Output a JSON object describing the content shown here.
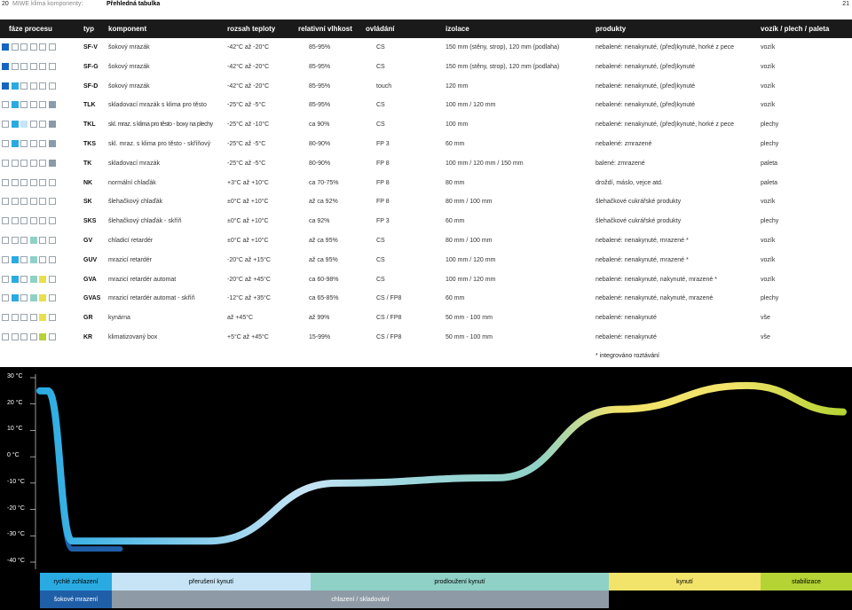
{
  "header": {
    "page_left": "20",
    "section": "MIWE klima komponenty:",
    "title": "Přehledná tabulka",
    "page_right": "21"
  },
  "table": {
    "columns": [
      "fáze procesu",
      "typ",
      "komponent",
      "rozsah teploty",
      "relativní vlhkost",
      "ovládání",
      "izolace",
      "produkty",
      "vozík / plech / paleta"
    ],
    "rows": [
      {
        "phase": [
          "blue",
          "w",
          "w",
          "w",
          "w",
          "w"
        ],
        "type": "SF-V",
        "component": "šokový mrazák",
        "temp": "-42°C až -20°C",
        "humidity": "85-95%",
        "control": "CS",
        "insulation": "150 mm (stěny, strop), 120 mm (podlaha)",
        "products": "nebalené: nenakynuté, (před)kynuté, horké z pece",
        "carrier": "vozík"
      },
      {
        "phase": [
          "blue",
          "w",
          "w",
          "w",
          "w",
          "w"
        ],
        "type": "SF-G",
        "component": "šokový mrazák",
        "temp": "-42°C až -20°C",
        "humidity": "85-95%",
        "control": "CS",
        "insulation": "150 mm (stěny, strop), 120 mm (podlaha)",
        "products": "nebalené: nenakynuté, (před)kynuté",
        "carrier": "vozík"
      },
      {
        "phase": [
          "blue",
          "sky",
          "w",
          "w",
          "w",
          "w"
        ],
        "type": "SF-D",
        "component": "šokový mrazák",
        "temp": "-42°C až -20°C",
        "humidity": "85-95%",
        "control": "touch",
        "insulation": "120 mm",
        "products": "nebalené: nenakynuté, (před)kynuté",
        "carrier": "vozík"
      },
      {
        "phase": [
          "w",
          "sky",
          "w",
          "w",
          "w",
          "grey"
        ],
        "type": "TLK",
        "component": "skladovací mrazák s klima pro těsto",
        "temp": "-25°C až -5°C",
        "humidity": "85-95%",
        "control": "CS",
        "insulation": "100 mm / 120 mm",
        "products": "nebalené: nenakynuté, (před)kynuté",
        "carrier": "vozík"
      },
      {
        "phase": [
          "w",
          "sky",
          "lblue",
          "w",
          "w",
          "grey"
        ],
        "type": "TKL",
        "component": "skl. mraz. s klima pro těsto - boxy na plechy",
        "temp": "-25°C až -10°C",
        "humidity": "ca 90%",
        "control": "CS",
        "insulation": "100 mm",
        "products": "nebalené: nenakynuté, (před)kynuté, horké z pece",
        "carrier": "plechy"
      },
      {
        "phase": [
          "w",
          "sky",
          "w",
          "w",
          "w",
          "grey"
        ],
        "type": "TKS",
        "component": "skl. mraz. s klima pro těsto - skříňový",
        "temp": "-25°C až -5°C",
        "humidity": "80-90%",
        "control": "FP 3",
        "insulation": "60 mm",
        "products": "nebalené: zmrazené",
        "carrier": "plechy"
      },
      {
        "phase": [
          "w",
          "w",
          "w",
          "w",
          "w",
          "grey"
        ],
        "type": "TK",
        "component": "skladovací mrazák",
        "temp": "-25°C až -5°C",
        "humidity": "80-90%",
        "control": "FP 8",
        "insulation": "100 mm / 120 mm / 150 mm",
        "products": "balené: zmrazené",
        "carrier": "paleta"
      },
      {
        "phase": [
          "w",
          "w",
          "w",
          "w",
          "w",
          "w"
        ],
        "type": "NK",
        "component": "normální chlaďák",
        "temp": "+3°C až +10°C",
        "humidity": "ca 70-75%",
        "control": "FP 8",
        "insulation": "80 mm",
        "products": "droždí, máslo, vejce atd.",
        "carrier": "paleta"
      },
      {
        "phase": [
          "w",
          "w",
          "w",
          "w",
          "w",
          "w"
        ],
        "type": "SK",
        "component": "šlehačkový chlaďák",
        "temp": "±0°C až +10°C",
        "humidity": "až ca 92%",
        "control": "FP 8",
        "insulation": "80 mm / 100 mm",
        "products": "šlehačkové cukrářské produkty",
        "carrier": "vozík"
      },
      {
        "phase": [
          "w",
          "w",
          "w",
          "w",
          "w",
          "w"
        ],
        "type": "SKS",
        "component": "šlehačkový chlaďák - skříň",
        "temp": "±0°C až +10°C",
        "humidity": "ca 92%",
        "control": "FP 3",
        "insulation": "60 mm",
        "products": "šlehačkové cukrářské produkty",
        "carrier": "plechy"
      },
      {
        "phase": [
          "w",
          "w",
          "w",
          "teal",
          "w",
          "w"
        ],
        "type": "GV",
        "component": "chladicí retardér",
        "temp": "±0°C až +10°C",
        "humidity": "až ca 95%",
        "control": "CS",
        "insulation": "80 mm / 100 mm",
        "products": "nebalené: nenakynuté, mrazené *",
        "carrier": "vozík"
      },
      {
        "phase": [
          "w",
          "sky",
          "w",
          "teal",
          "w",
          "w"
        ],
        "type": "GUV",
        "component": "mrazicí retardér",
        "temp": "-20°C až +15°C",
        "humidity": "až ca 95%",
        "control": "CS",
        "insulation": "100 mm / 120 mm",
        "products": "nebalené: nenakynuté, mrazené *",
        "carrier": "vozík"
      },
      {
        "phase": [
          "w",
          "sky",
          "w",
          "teal",
          "yel",
          "w"
        ],
        "type": "GVA",
        "component": "mrazicí retardér automat",
        "temp": "-20°C až +45°C",
        "humidity": "ca 60-98%",
        "control": "CS",
        "insulation": "100 mm / 120 mm",
        "products": "nebalené: nenakynuté, nakynuté, mrazené *",
        "carrier": "vozík"
      },
      {
        "phase": [
          "w",
          "sky",
          "w",
          "teal",
          "yel",
          "w"
        ],
        "type": "GVAS",
        "component": "mrazicí retardér automat - skříň",
        "temp": "-12°C až +35°C",
        "humidity": "ca 65-85%",
        "control": "CS / FP8",
        "insulation": "60 mm",
        "products": "nebalené: nenakynuté, nakynuté, mrazené",
        "carrier": "plechy"
      },
      {
        "phase": [
          "w",
          "w",
          "w",
          "w",
          "yel",
          "w"
        ],
        "type": "GR",
        "component": "kynárna",
        "temp": "až +45°C",
        "humidity": "až 99%",
        "control": "CS / FP8",
        "insulation": "50 mm - 100 mm",
        "products": "nebalené: nenakynuté",
        "carrier": "vše"
      },
      {
        "phase": [
          "w",
          "w",
          "w",
          "w",
          "lime",
          "w"
        ],
        "type": "KR",
        "component": "klimatizovaný box",
        "temp": "+5°C až +45°C",
        "humidity": "15-99%",
        "control": "CS / FP8",
        "insulation": "50 mm - 100 mm",
        "products": "nebalené: nenakynuté",
        "carrier": "vše"
      }
    ],
    "footnote": "* integrováno roztávání"
  },
  "chart_data": {
    "type": "line",
    "y_axis": {
      "ticks": [
        "30 °C",
        "20 °C",
        "10 °C",
        "0 °C",
        "-10 °C",
        "-20 °C",
        "-30 °C",
        "-40 °C"
      ],
      "range": [
        -40,
        30
      ]
    },
    "series": [
      {
        "points": [
          [
            0,
            25
          ],
          [
            1,
            25
          ],
          [
            4,
            -35
          ],
          [
            10,
            -35
          ]
        ],
        "color": "#1f5fa8"
      },
      {
        "points": [
          [
            0,
            25
          ],
          [
            1,
            25
          ],
          [
            4,
            -32
          ],
          [
            21,
            -32
          ],
          [
            37,
            -10
          ],
          [
            57,
            -8
          ],
          [
            72,
            18
          ],
          [
            88,
            27
          ],
          [
            100,
            17
          ]
        ],
        "color": "#29abe2"
      }
    ],
    "colors": {
      "shock": "#1f5fa8",
      "fast": "#29abe2",
      "interrupt": "#c6e4f5",
      "extended": "#8fd1c6",
      "proof": "#f2e36a",
      "stabilize": "#b5d334",
      "cool": "#8e9ba6"
    },
    "bands_top": [
      {
        "label": "rychlé zchlazení",
        "color": "#29abe2"
      },
      {
        "label": "přerušení kynutí",
        "color": "#c6e4f5"
      },
      {
        "label": "prodloužení kynutí",
        "color": "#8fd1c6"
      },
      {
        "label": "kynutí",
        "color": "#f2e36a"
      },
      {
        "label": "stabilizace",
        "color": "#b5d334"
      }
    ],
    "bands_bottom": [
      {
        "label": "šokové mrazení",
        "color": "#1f5fa8"
      },
      {
        "label": "chlazení / skladování",
        "color": "#8e9ba6"
      }
    ]
  }
}
